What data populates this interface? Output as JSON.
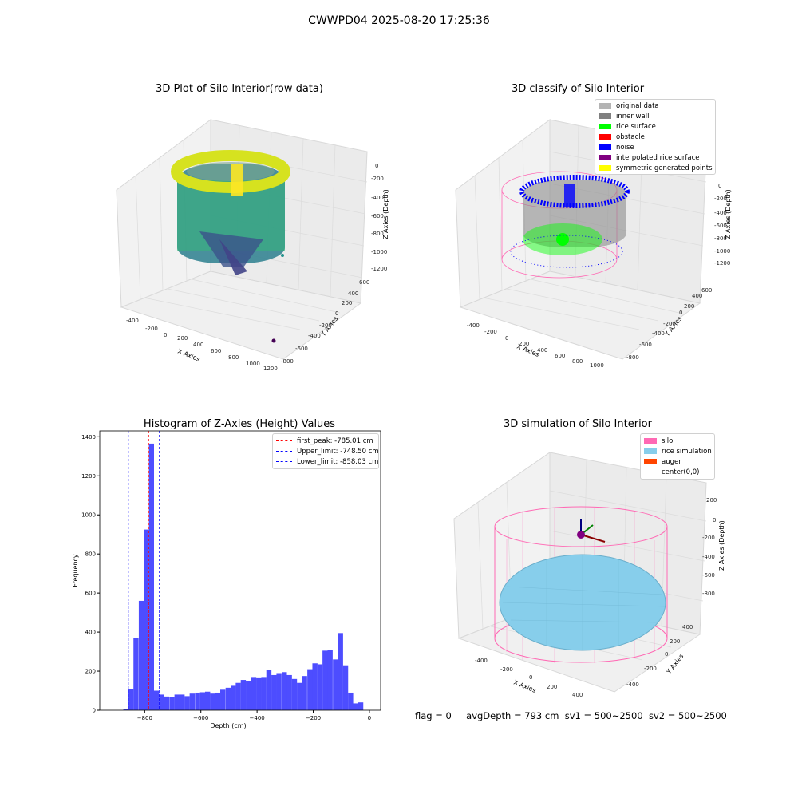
{
  "figure_title": "CWWPD04 2025-08-20 17:25:36",
  "footer": {
    "flag": "flag = 0",
    "avg_depth": "avgDepth = 793 cm",
    "sv1": "sv1 = 500~2500",
    "sv2": "sv2 = 500~2500"
  },
  "chart_data": [
    {
      "type": "scatter",
      "title": "3D Plot of Silo Interior(row data)",
      "xlabel": "X Axies",
      "ylabel": "Y Axies",
      "zlabel": "Z Axies (Depth)",
      "x_ticks": [
        "-400",
        "-200",
        "0",
        "200",
        "400",
        "600",
        "800",
        "1000",
        "1200"
      ],
      "y_ticks": [
        "-800",
        "-600",
        "-400",
        "-200",
        "0",
        "200",
        "400",
        "600"
      ],
      "z_ticks": [
        "0",
        "-200",
        "-400",
        "-600",
        "-800",
        "-1000",
        "-1200"
      ],
      "colormap": "viridis",
      "colors": {
        "high": "#fde725",
        "mid": "#21918c",
        "low": "#3b528b",
        "outlier": "#440154"
      }
    },
    {
      "type": "scatter",
      "title": "3D classify of Silo Interior",
      "xlabel": "X Axies",
      "ylabel": "Y Axies",
      "zlabel": "Z Axies (Depth)",
      "x_ticks": [
        "-400",
        "-200",
        "0",
        "200",
        "400",
        "600",
        "800",
        "1000"
      ],
      "y_ticks": [
        "-800",
        "-600",
        "-400",
        "-200",
        "0",
        "200",
        "400",
        "600"
      ],
      "z_ticks": [
        "0",
        "-200",
        "-400",
        "-600",
        "-800",
        "-1000",
        "-1200"
      ],
      "legend": [
        {
          "label": "original data",
          "color": "#b4b4b4"
        },
        {
          "label": "inner wall",
          "color": "#808080"
        },
        {
          "label": "rice surface",
          "color": "#00ff00"
        },
        {
          "label": "obstacle",
          "color": "#ff0000"
        },
        {
          "label": "noise",
          "color": "#0000ff"
        },
        {
          "label": "interpolated rice surface",
          "color": "#800080"
        },
        {
          "label": "symmetric generated points",
          "color": "#ffff00"
        }
      ],
      "legend_position": "top-right"
    },
    {
      "type": "bar",
      "title": "Histogram of Z-Axies (Height) Values",
      "xlabel": "Depth (cm)",
      "ylabel": "Frequency",
      "xlim": [
        -960,
        40
      ],
      "ylim": [
        0,
        1430
      ],
      "x_ticks": [
        -800,
        -600,
        -400,
        -200,
        0
      ],
      "y_ticks": [
        0,
        200,
        400,
        600,
        800,
        1000,
        1200,
        1400
      ],
      "bar_color": "#4d4dff",
      "bin_width": 18.2,
      "bin_starts": [
        -876,
        -858,
        -840,
        -821,
        -803,
        -785,
        -767,
        -749,
        -731,
        -712,
        -694,
        -676,
        -658,
        -640,
        -621,
        -603,
        -585,
        -567,
        -549,
        -531,
        -512,
        -494,
        -476,
        -458,
        -440,
        -421,
        -403,
        -385,
        -367,
        -349,
        -331,
        -312,
        -294,
        -276,
        -258,
        -240,
        -221,
        -203,
        -185,
        -167,
        -149,
        -130,
        -112,
        -94,
        -76,
        -58,
        -40,
        -21,
        -3
      ],
      "values": [
        5,
        110,
        370,
        560,
        925,
        1365,
        100,
        80,
        70,
        68,
        80,
        80,
        72,
        85,
        90,
        92,
        95,
        85,
        90,
        105,
        115,
        125,
        140,
        155,
        150,
        170,
        168,
        170,
        205,
        180,
        190,
        195,
        180,
        160,
        140,
        175,
        210,
        240,
        235,
        305,
        310,
        260,
        395,
        230,
        90,
        35,
        40,
        0,
        0
      ],
      "reference_lines": [
        {
          "label": "first_peak: -785.01 cm",
          "x": -785.01,
          "color": "#ff0000"
        },
        {
          "label": "Upper_limit: -748.50 cm",
          "x": -748.5,
          "color": "#0000ff"
        },
        {
          "label": "Lower_limit: -858.03 cm",
          "x": -858.03,
          "color": "#0000ff"
        }
      ],
      "legend_position": "top-right"
    },
    {
      "type": "surface",
      "title": "3D simulation of Silo Interior",
      "xlabel": "X Axies",
      "ylabel": "Y Axies",
      "zlabel": "Z Axies (Depth)",
      "x_ticks": [
        "-400",
        "-200",
        "0",
        "200",
        "400"
      ],
      "y_ticks": [
        "-400",
        "-200",
        "0",
        "200",
        "400"
      ],
      "z_ticks": [
        "200",
        "0",
        "-200",
        "-400",
        "-600",
        "-800"
      ],
      "legend": [
        {
          "label": "silo",
          "color": "#ff69b4"
        },
        {
          "label": "rice simulation",
          "color": "#87ceeb"
        },
        {
          "label": "auger",
          "color": "#ff4500"
        },
        {
          "label": "center(0,0)",
          "color": ""
        }
      ],
      "legend_position": "top-right"
    }
  ]
}
